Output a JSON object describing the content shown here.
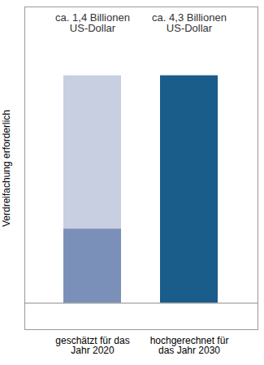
{
  "chart_data": {
    "type": "bar",
    "categories": [
      "geschätzt für das\nJahr 2020",
      "hochgerechnet für\ndas Jahr 2030"
    ],
    "series": [
      {
        "color": "#c8cfe0",
        "values": [
          4.3,
          null
        ]
      },
      {
        "colors": [
          "#7b90b8",
          "#1a5c8a"
        ],
        "values": [
          1.4,
          4.3
        ],
        "value_labels": [
          "ca. 1,4 Billionen\nUS-Dollar",
          "ca. 4,3 Billionen\nUS-Dollar"
        ]
      }
    ],
    "ylabel": "Verdreifachung erforderlich",
    "ylim": [
      -0.5,
      5.6
    ],
    "yticks": [],
    "stacked": false,
    "data_labels": true,
    "tick_labels": "x",
    "grid": false
  }
}
